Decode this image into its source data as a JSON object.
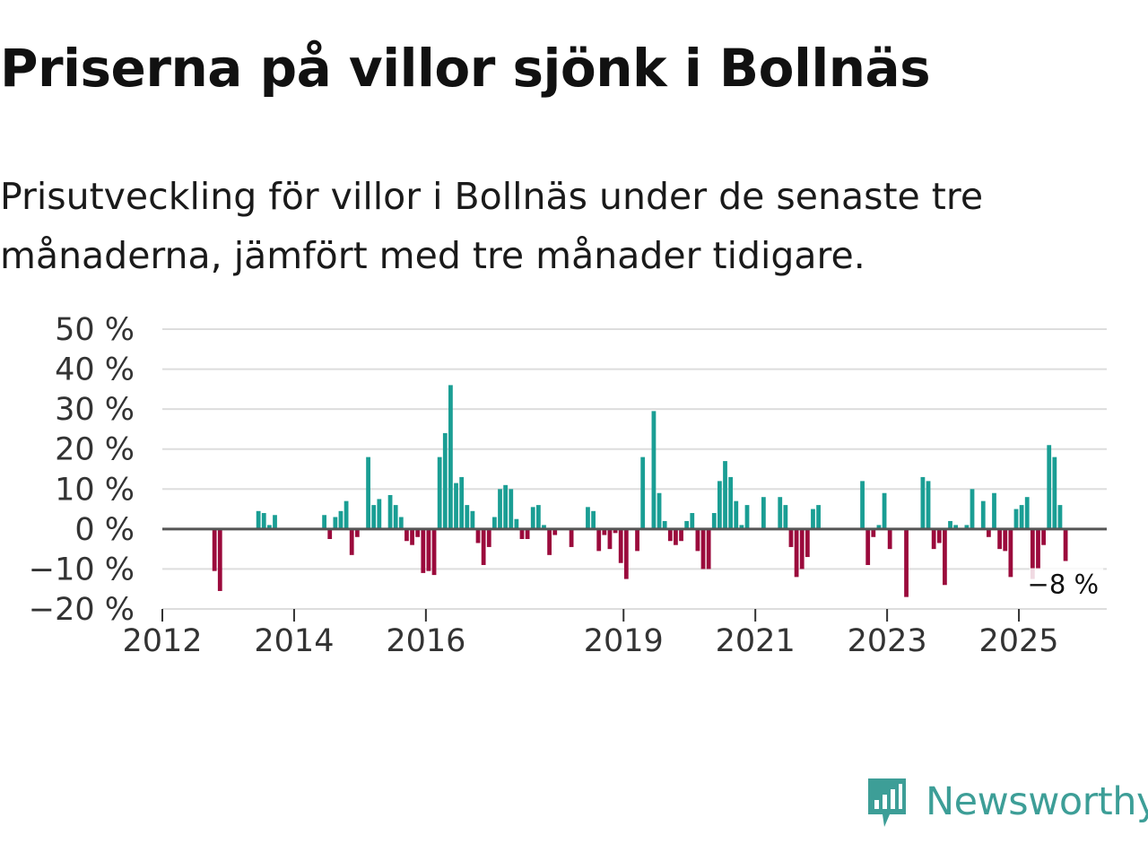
{
  "header": {
    "title": "Priserna på villor sjönk i Bollnäs",
    "subtitle": "Prisutveckling för villor i Bollnäs under de senaste tre månaderna, jämfört med tre månader tidigare."
  },
  "brand": {
    "name": "Newsworthy",
    "color": "#3d9e97",
    "icon": "newsworthy-logo-icon"
  },
  "colors": {
    "positive": "#1a9e94",
    "negative": "#9b0a3c",
    "grid": "#dddddd",
    "zero_line": "#555555"
  },
  "chart_data": {
    "type": "bar",
    "x_start": "2012-01",
    "x_end": "2026-05",
    "ylim": [
      -20,
      50
    ],
    "y_ticks": [
      -20,
      -10,
      0,
      10,
      20,
      30,
      40,
      50
    ],
    "y_tick_labels": [
      "−20 %",
      "−10 %",
      "0 %",
      "10 %",
      "20 %",
      "30 %",
      "40 %",
      "50 %"
    ],
    "x_ticks": [
      {
        "date": "2012-01",
        "label": "2012"
      },
      {
        "date": "2014-01",
        "label": "2014"
      },
      {
        "date": "2016-01",
        "label": "2016"
      },
      {
        "date": "2019-01",
        "label": "2019"
      },
      {
        "date": "2021-01",
        "label": "2021"
      },
      {
        "date": "2023-01",
        "label": "2023"
      },
      {
        "date": "2025-01",
        "label": "2025"
      }
    ],
    "last_label": "−8 %",
    "bars": [
      {
        "date": "2012-10",
        "value": -10.5
      },
      {
        "date": "2012-11",
        "value": -15.5
      },
      {
        "date": "2013-06",
        "value": 4.5
      },
      {
        "date": "2013-07",
        "value": 4
      },
      {
        "date": "2013-08",
        "value": 1
      },
      {
        "date": "2013-09",
        "value": 3.5
      },
      {
        "date": "2014-06",
        "value": 3.5
      },
      {
        "date": "2014-07",
        "value": -2.5
      },
      {
        "date": "2014-08",
        "value": 3
      },
      {
        "date": "2014-09",
        "value": 4.5
      },
      {
        "date": "2014-10",
        "value": 7
      },
      {
        "date": "2014-11",
        "value": -6.5
      },
      {
        "date": "2014-12",
        "value": -2
      },
      {
        "date": "2015-02",
        "value": 18
      },
      {
        "date": "2015-03",
        "value": 6
      },
      {
        "date": "2015-04",
        "value": 7.5
      },
      {
        "date": "2015-06",
        "value": 8.5
      },
      {
        "date": "2015-07",
        "value": 6
      },
      {
        "date": "2015-08",
        "value": 3
      },
      {
        "date": "2015-09",
        "value": -3
      },
      {
        "date": "2015-10",
        "value": -4
      },
      {
        "date": "2015-11",
        "value": -2
      },
      {
        "date": "2015-12",
        "value": -11
      },
      {
        "date": "2016-01",
        "value": -10.5
      },
      {
        "date": "2016-02",
        "value": -11.5
      },
      {
        "date": "2016-03",
        "value": 18
      },
      {
        "date": "2016-04",
        "value": 24
      },
      {
        "date": "2016-05",
        "value": 36
      },
      {
        "date": "2016-06",
        "value": 11.5
      },
      {
        "date": "2016-07",
        "value": 13
      },
      {
        "date": "2016-08",
        "value": 6
      },
      {
        "date": "2016-09",
        "value": 4.5
      },
      {
        "date": "2016-10",
        "value": -3.5
      },
      {
        "date": "2016-11",
        "value": -9
      },
      {
        "date": "2016-12",
        "value": -4.5
      },
      {
        "date": "2017-01",
        "value": 3
      },
      {
        "date": "2017-02",
        "value": 10
      },
      {
        "date": "2017-03",
        "value": 11
      },
      {
        "date": "2017-04",
        "value": 10
      },
      {
        "date": "2017-05",
        "value": 2.5
      },
      {
        "date": "2017-06",
        "value": -2.5
      },
      {
        "date": "2017-07",
        "value": -2.5
      },
      {
        "date": "2017-08",
        "value": 5.5
      },
      {
        "date": "2017-09",
        "value": 6
      },
      {
        "date": "2017-10",
        "value": 1
      },
      {
        "date": "2017-11",
        "value": -6.5
      },
      {
        "date": "2017-12",
        "value": -1.5
      },
      {
        "date": "2018-03",
        "value": -4.5
      },
      {
        "date": "2018-06",
        "value": 5.5
      },
      {
        "date": "2018-07",
        "value": 4.5
      },
      {
        "date": "2018-08",
        "value": -5.5
      },
      {
        "date": "2018-09",
        "value": -1.5
      },
      {
        "date": "2018-10",
        "value": -5
      },
      {
        "date": "2018-11",
        "value": -1
      },
      {
        "date": "2018-12",
        "value": -8.5
      },
      {
        "date": "2019-01",
        "value": -12.5
      },
      {
        "date": "2019-03",
        "value": -5.5
      },
      {
        "date": "2019-04",
        "value": 18
      },
      {
        "date": "2019-06",
        "value": 29.5
      },
      {
        "date": "2019-07",
        "value": 9
      },
      {
        "date": "2019-08",
        "value": 2
      },
      {
        "date": "2019-09",
        "value": -3
      },
      {
        "date": "2019-10",
        "value": -4
      },
      {
        "date": "2019-11",
        "value": -3
      },
      {
        "date": "2019-12",
        "value": 2
      },
      {
        "date": "2020-01",
        "value": 4
      },
      {
        "date": "2020-02",
        "value": -5.5
      },
      {
        "date": "2020-03",
        "value": -10
      },
      {
        "date": "2020-04",
        "value": -10
      },
      {
        "date": "2020-05",
        "value": 4
      },
      {
        "date": "2020-06",
        "value": 12
      },
      {
        "date": "2020-07",
        "value": 17
      },
      {
        "date": "2020-08",
        "value": 13
      },
      {
        "date": "2020-09",
        "value": 7
      },
      {
        "date": "2020-10",
        "value": 1
      },
      {
        "date": "2020-11",
        "value": 6
      },
      {
        "date": "2021-02",
        "value": 8
      },
      {
        "date": "2021-05",
        "value": 8
      },
      {
        "date": "2021-06",
        "value": 6
      },
      {
        "date": "2021-07",
        "value": -4.5
      },
      {
        "date": "2021-08",
        "value": -12
      },
      {
        "date": "2021-09",
        "value": -10
      },
      {
        "date": "2021-10",
        "value": -7
      },
      {
        "date": "2021-11",
        "value": 5
      },
      {
        "date": "2021-12",
        "value": 6
      },
      {
        "date": "2022-08",
        "value": 12
      },
      {
        "date": "2022-09",
        "value": -9
      },
      {
        "date": "2022-10",
        "value": -2
      },
      {
        "date": "2022-11",
        "value": 1
      },
      {
        "date": "2022-12",
        "value": 9
      },
      {
        "date": "2023-01",
        "value": -5
      },
      {
        "date": "2023-04",
        "value": -17
      },
      {
        "date": "2023-07",
        "value": 13
      },
      {
        "date": "2023-08",
        "value": 12
      },
      {
        "date": "2023-09",
        "value": -5
      },
      {
        "date": "2023-10",
        "value": -3.5
      },
      {
        "date": "2023-11",
        "value": -14
      },
      {
        "date": "2023-12",
        "value": 2
      },
      {
        "date": "2024-01",
        "value": 1
      },
      {
        "date": "2024-03",
        "value": 1
      },
      {
        "date": "2024-04",
        "value": 10
      },
      {
        "date": "2024-06",
        "value": 7
      },
      {
        "date": "2024-07",
        "value": -2
      },
      {
        "date": "2024-08",
        "value": 9
      },
      {
        "date": "2024-09",
        "value": -5
      },
      {
        "date": "2024-10",
        "value": -5.5
      },
      {
        "date": "2024-11",
        "value": -12
      },
      {
        "date": "2024-12",
        "value": 5
      },
      {
        "date": "2025-01",
        "value": 6
      },
      {
        "date": "2025-02",
        "value": 8
      },
      {
        "date": "2025-03",
        "value": -12.5
      },
      {
        "date": "2025-04",
        "value": -10
      },
      {
        "date": "2025-05",
        "value": -4
      },
      {
        "date": "2025-06",
        "value": 21
      },
      {
        "date": "2025-07",
        "value": 18
      },
      {
        "date": "2025-08",
        "value": 6
      },
      {
        "date": "2025-09",
        "value": -8
      }
    ]
  }
}
